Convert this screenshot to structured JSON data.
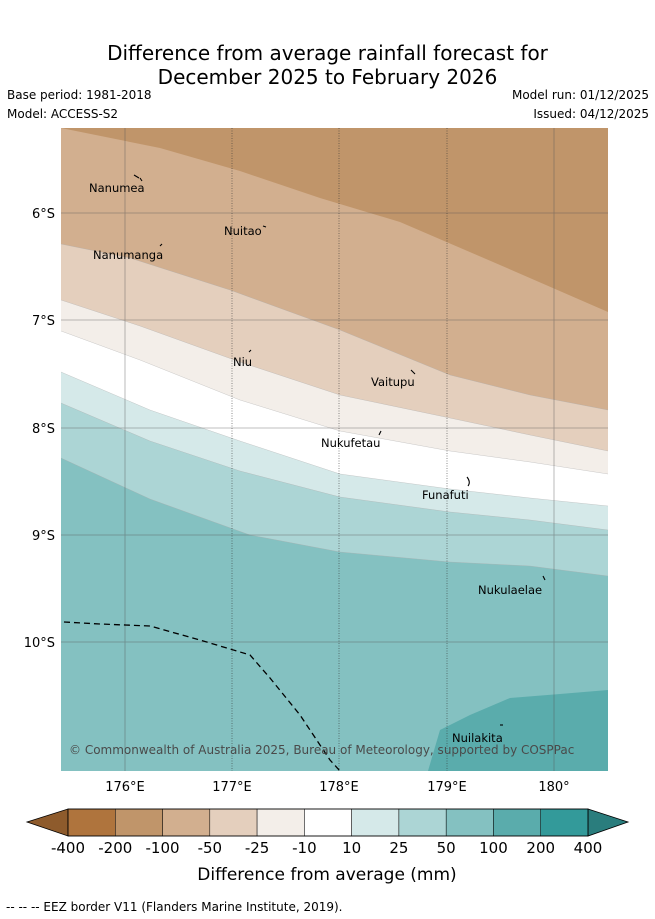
{
  "title": {
    "line1": "Difference from average rainfall forecast for",
    "line2": "December 2025 to February 2026"
  },
  "meta": {
    "base_period": "Base period: 1981-2018",
    "model": "Model: ACCESS-S2",
    "model_run": "Model run: 01/12/2025",
    "issued": "Issued: 04/12/2025"
  },
  "map": {
    "lat_labels": [
      "6°S",
      "7°S",
      "8°S",
      "9°S",
      "10°S"
    ],
    "lon_labels": [
      "176°E",
      "177°E",
      "178°E",
      "179°E",
      "180°"
    ],
    "places": [
      "Nanumea",
      "Nuitao",
      "Nanumanga",
      "Niu",
      "Vaitupu",
      "Nukufetau",
      "Funafuti",
      "Nukulaelae",
      "Nuilakita"
    ],
    "copyright": "© Commonwealth of Australia 2025, Bureau of Meteorology, supported by COSPPac"
  },
  "legend": {
    "ticks": [
      "-400",
      "-200",
      "-100",
      "-50",
      "-25",
      "-10",
      "10",
      "25",
      "50",
      "100",
      "200",
      "400"
    ],
    "colors": [
      "#af743d",
      "#c0956a",
      "#d2af8f",
      "#e4cfbd",
      "#f3eee9",
      "#ffffff",
      "#d5e9e9",
      "#acd5d5",
      "#84c1c1",
      "#5aacac",
      "#339a9a"
    ],
    "extend_low": "#8e5b2c",
    "extend_high": "#2a7d7d",
    "label": "Difference from average (mm)"
  },
  "footnote": "--  --  -- EEZ border V11 (Flanders Marine Institute, 2019)."
}
